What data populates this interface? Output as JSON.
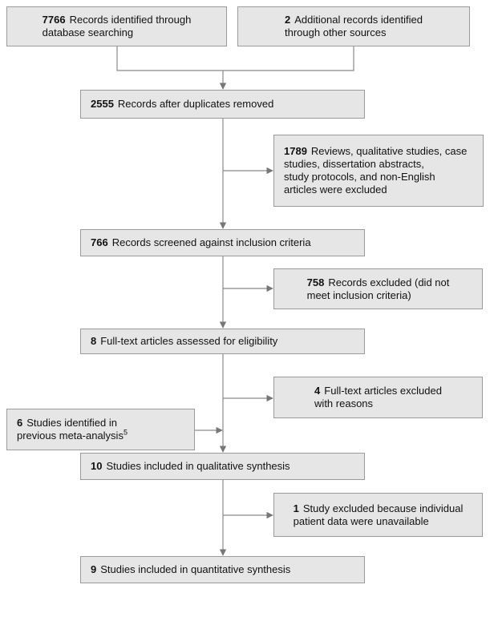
{
  "nodes": [
    {
      "count": 7766,
      "lines": [
        "Records identified through",
        "database searching"
      ]
    },
    {
      "count": 2,
      "lines": [
        "Additional records identified",
        "through other sources"
      ]
    },
    {
      "count": 2555,
      "lines": [
        "Records after duplicates removed"
      ]
    },
    {
      "count": 1789,
      "lines": [
        "Reviews, qualitative studies, case",
        "studies, dissertation abstracts,",
        "study protocols, and non-English",
        "articles were excluded"
      ]
    },
    {
      "count": 766,
      "lines": [
        "Records screened against inclusion criteria"
      ]
    },
    {
      "count": 758,
      "lines": [
        "Records excluded (did not",
        "meet inclusion criteria)"
      ]
    },
    {
      "count": 8,
      "lines": [
        "Full-text articles assessed for eligibility"
      ]
    },
    {
      "count": 4,
      "lines": [
        "Full-text articles excluded",
        "with reasons"
      ]
    },
    {
      "count": 6,
      "lines": [
        "Studies identified in",
        "previous meta-analysis"
      ],
      "sup": "5"
    },
    {
      "count": 10,
      "lines": [
        "Studies included in qualitative synthesis"
      ]
    },
    {
      "count": 1,
      "lines": [
        "Study excluded because individual",
        "patient data were unavailable"
      ]
    },
    {
      "count": 9,
      "lines": [
        "Studies included in quantitative synthesis"
      ]
    }
  ]
}
